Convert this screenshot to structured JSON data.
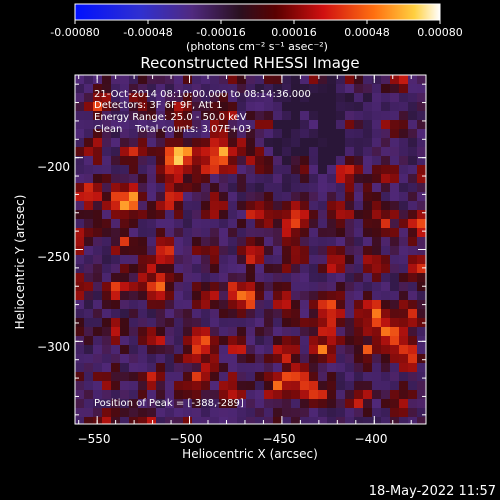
{
  "colorbar": {
    "tick_labels": [
      "-0.00080",
      "-0.00048",
      "-0.00016",
      "0.00016",
      "0.00048",
      "0.00080"
    ],
    "units_label": "(photons cm⁻² s⁻¹ asec⁻²)"
  },
  "title": "Reconstructed RHESSI Image",
  "annotations": {
    "time": "21-Oct-2014 08:10:00.000 to 08:14:36.000",
    "detectors": "Detectors: 3F 6F 9F, Att 1",
    "energy": "Energy Range: 25.0 - 50.0 keV",
    "clean": "Clean    Total counts: 3.07E+03",
    "peak": "Position of Peak = [-388,-289]"
  },
  "axes": {
    "xlabel": "Heliocentric X (arcsec)",
    "ylabel": "Heliocentric Y (arcsec)",
    "xlim": [
      -562,
      -372
    ],
    "ylim": [
      -345,
      -155
    ],
    "xticks": [
      -550,
      -500,
      -450,
      -400
    ],
    "yticks": [
      -200,
      -250,
      -300
    ],
    "xtick_labels": [
      "−550",
      "−500",
      "−450",
      "−400"
    ],
    "ytick_labels": [
      "−200",
      "−250",
      "−300"
    ]
  },
  "timestamp": "18-May-2022 11:57",
  "colors": {
    "background": "#000000",
    "text": "#ffffff",
    "colormap": [
      "#0000ff",
      "#4a2a8a",
      "#3a2050",
      "#5a1010",
      "#c01010",
      "#ff5010",
      "#ffb030",
      "#ffffff"
    ]
  }
}
